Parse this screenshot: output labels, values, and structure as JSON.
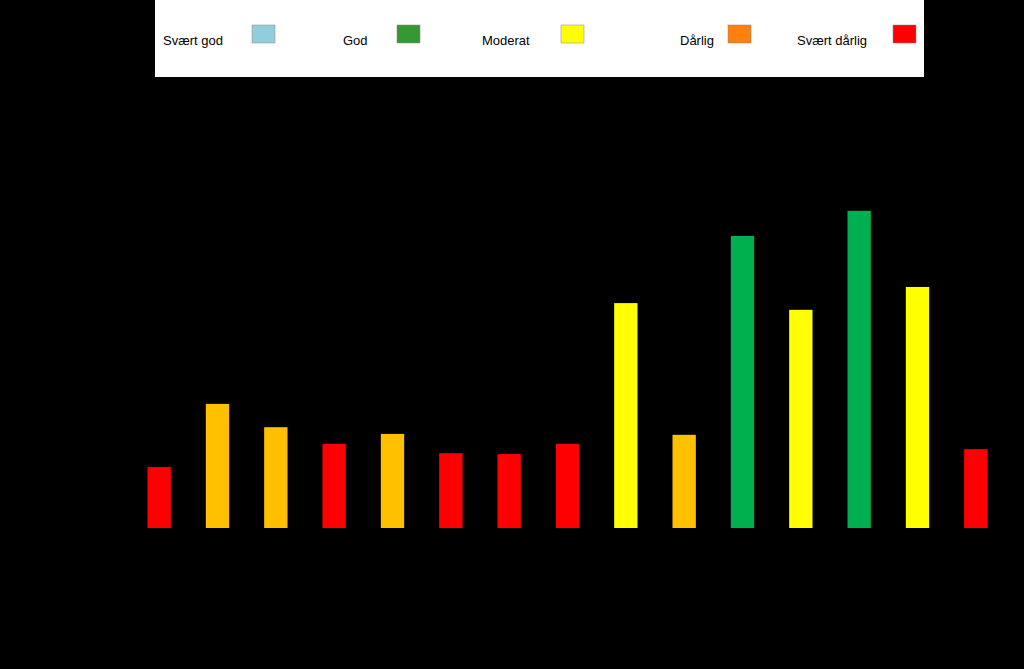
{
  "chart_data": {
    "type": "bar",
    "categories": [
      null,
      null,
      null,
      null,
      null,
      null,
      null,
      null,
      null,
      null,
      null,
      null,
      null,
      null,
      null
    ],
    "values": [
      1.36,
      2.77,
      2.25,
      1.88,
      2.1,
      1.67,
      1.65,
      1.88,
      5.02,
      2.08,
      6.52,
      4.87,
      7.08,
      5.38,
      1.76
    ],
    "colors": [
      "#ff0000",
      "#ffc000",
      "#ffc000",
      "#ff0000",
      "#ffc000",
      "#ff0000",
      "#ff0000",
      "#ff0000",
      "#ffff00",
      "#ffc000",
      "#00b050",
      "#ffff00",
      "#00b050",
      "#ffff00",
      "#ff0000"
    ],
    "ylim": [
      0,
      10
    ],
    "yticks": [
      0,
      1,
      2,
      3,
      4,
      5,
      6,
      7,
      8,
      9,
      10
    ],
    "tick_labels": false,
    "legend": "top",
    "legend_entries": [
      {
        "name": "Svært god",
        "color": "#92cddc"
      },
      {
        "name": "God",
        "color": "#339933"
      },
      {
        "name": "Moderat",
        "color": "#ffff00"
      },
      {
        "name": "Dårlig",
        "color": "#ff7f0f"
      },
      {
        "name": "Svært dårlig",
        "color": "#ff0000"
      }
    ]
  }
}
